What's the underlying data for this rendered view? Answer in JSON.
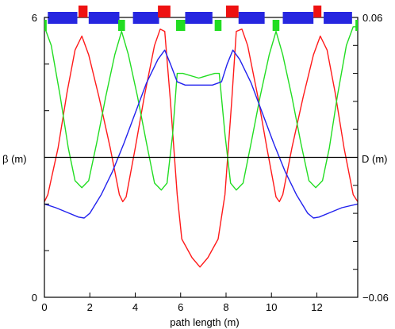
{
  "chart_data": {
    "type": "line",
    "title": "",
    "xlabel": "path length (m)",
    "ylabel_left": "β (m)",
    "ylabel_right": "D (m)",
    "xlim": [
      0,
      13.8
    ],
    "ylim_left": [
      0,
      6
    ],
    "ylim_right": [
      -0.06,
      0.06
    ],
    "x_ticks": [
      0,
      2,
      4,
      6,
      8,
      10,
      12
    ],
    "y_left_tick_labels": [
      {
        "value": 6,
        "label": "6"
      },
      {
        "value": 0,
        "label": "0"
      }
    ],
    "y_right_tick_labels": [
      {
        "value": 0.06,
        "label": "0.06"
      },
      {
        "value": -0.06,
        "label": "−0.06"
      }
    ],
    "grid": false,
    "legend": "none",
    "reference_line": {
      "y_left": 3,
      "color": "#000000"
    },
    "series": [
      {
        "axis": "left",
        "color": "#ff1a1a",
        "points": [
          [
            0,
            2.05
          ],
          [
            0.15,
            2.2
          ],
          [
            0.6,
            3.2
          ],
          [
            1.0,
            4.4
          ],
          [
            1.35,
            5.3
          ],
          [
            1.65,
            5.6
          ],
          [
            1.95,
            5.2
          ],
          [
            2.4,
            4.3
          ],
          [
            2.9,
            3.2
          ],
          [
            3.3,
            2.2
          ],
          [
            3.45,
            2.05
          ],
          [
            3.6,
            2.15
          ],
          [
            4.0,
            3.2
          ],
          [
            4.4,
            4.3
          ],
          [
            4.85,
            5.4
          ],
          [
            5.1,
            5.75
          ],
          [
            5.3,
            5.7
          ],
          [
            5.55,
            4.2
          ],
          [
            5.85,
            2.2
          ],
          [
            6.05,
            1.25
          ],
          [
            6.5,
            0.85
          ],
          [
            6.85,
            0.65
          ],
          [
            7.2,
            0.85
          ],
          [
            7.65,
            1.25
          ],
          [
            7.95,
            2.2
          ],
          [
            8.25,
            4.2
          ],
          [
            8.45,
            5.7
          ],
          [
            8.7,
            5.75
          ],
          [
            8.95,
            5.4
          ],
          [
            9.4,
            4.3
          ],
          [
            9.8,
            3.2
          ],
          [
            10.2,
            2.15
          ],
          [
            10.35,
            2.05
          ],
          [
            10.5,
            2.2
          ],
          [
            10.9,
            3.2
          ],
          [
            11.4,
            4.3
          ],
          [
            11.85,
            5.2
          ],
          [
            12.15,
            5.6
          ],
          [
            12.45,
            5.3
          ],
          [
            12.8,
            4.4
          ],
          [
            13.2,
            3.2
          ],
          [
            13.6,
            2.2
          ],
          [
            13.8,
            2.05
          ]
        ]
      },
      {
        "axis": "left",
        "color": "#22dd22",
        "points": [
          [
            0,
            5.8
          ],
          [
            0.3,
            5.4
          ],
          [
            0.7,
            4.3
          ],
          [
            1.05,
            3.2
          ],
          [
            1.35,
            2.5
          ],
          [
            1.65,
            2.35
          ],
          [
            1.95,
            2.5
          ],
          [
            2.3,
            3.3
          ],
          [
            2.7,
            4.3
          ],
          [
            3.1,
            5.2
          ],
          [
            3.4,
            5.7
          ],
          [
            3.7,
            5.2
          ],
          [
            4.1,
            4.3
          ],
          [
            4.5,
            3.3
          ],
          [
            4.85,
            2.45
          ],
          [
            5.15,
            2.3
          ],
          [
            5.4,
            2.45
          ],
          [
            5.65,
            3.5
          ],
          [
            5.85,
            4.8
          ],
          [
            6.1,
            4.8
          ],
          [
            6.8,
            4.7
          ],
          [
            7.5,
            4.8
          ],
          [
            7.7,
            4.8
          ],
          [
            7.95,
            3.5
          ],
          [
            8.2,
            2.45
          ],
          [
            8.45,
            2.3
          ],
          [
            8.75,
            2.45
          ],
          [
            9.1,
            3.3
          ],
          [
            9.5,
            4.3
          ],
          [
            9.9,
            5.2
          ],
          [
            10.2,
            5.7
          ],
          [
            10.5,
            5.2
          ],
          [
            10.9,
            4.3
          ],
          [
            11.3,
            3.3
          ],
          [
            11.65,
            2.5
          ],
          [
            11.95,
            2.35
          ],
          [
            12.25,
            2.5
          ],
          [
            12.55,
            3.2
          ],
          [
            12.9,
            4.3
          ],
          [
            13.3,
            5.4
          ],
          [
            13.6,
            5.8
          ],
          [
            13.8,
            5.8
          ]
        ]
      },
      {
        "axis": "left",
        "color": "#2222ee",
        "points": [
          [
            0,
            2.0
          ],
          [
            0.5,
            1.92
          ],
          [
            1.0,
            1.82
          ],
          [
            1.5,
            1.72
          ],
          [
            1.75,
            1.7
          ],
          [
            2.0,
            1.8
          ],
          [
            2.5,
            2.2
          ],
          [
            3.0,
            2.7
          ],
          [
            3.5,
            3.3
          ],
          [
            4.0,
            3.95
          ],
          [
            4.5,
            4.6
          ],
          [
            5.0,
            5.1
          ],
          [
            5.3,
            5.3
          ],
          [
            5.55,
            5.0
          ],
          [
            5.85,
            4.62
          ],
          [
            6.2,
            4.55
          ],
          [
            6.8,
            4.55
          ],
          [
            7.4,
            4.55
          ],
          [
            7.8,
            4.62
          ],
          [
            8.05,
            5.0
          ],
          [
            8.3,
            5.3
          ],
          [
            8.6,
            5.1
          ],
          [
            9.1,
            4.6
          ],
          [
            9.6,
            3.95
          ],
          [
            10.1,
            3.3
          ],
          [
            10.6,
            2.7
          ],
          [
            11.1,
            2.2
          ],
          [
            11.6,
            1.8
          ],
          [
            11.85,
            1.7
          ],
          [
            12.1,
            1.72
          ],
          [
            12.6,
            1.82
          ],
          [
            13.1,
            1.92
          ],
          [
            13.8,
            2.0
          ]
        ]
      }
    ],
    "magnet_lattice": {
      "dipoles": [
        [
          0.15,
          1.45
        ],
        [
          1.95,
          3.3
        ],
        [
          3.9,
          5.05
        ],
        [
          6.2,
          7.4
        ],
        [
          8.55,
          9.7
        ],
        [
          10.5,
          11.85
        ],
        [
          12.3,
          13.55
        ]
      ],
      "upper_quadrupoles": [
        [
          1.5,
          1.9
        ],
        [
          5.0,
          5.55
        ],
        [
          8.0,
          8.55
        ],
        [
          11.85,
          12.2
        ]
      ],
      "lower_quadrupoles": [
        [
          0,
          0.1
        ],
        [
          3.25,
          3.55
        ],
        [
          5.8,
          6.2
        ],
        [
          7.5,
          7.8
        ],
        [
          10.05,
          10.35
        ],
        [
          13.7,
          13.8
        ]
      ],
      "colors": {
        "dipole": "#2626e0",
        "upper_quadrupole": "#ee1111",
        "lower_quadrupole": "#22dd22"
      }
    }
  }
}
